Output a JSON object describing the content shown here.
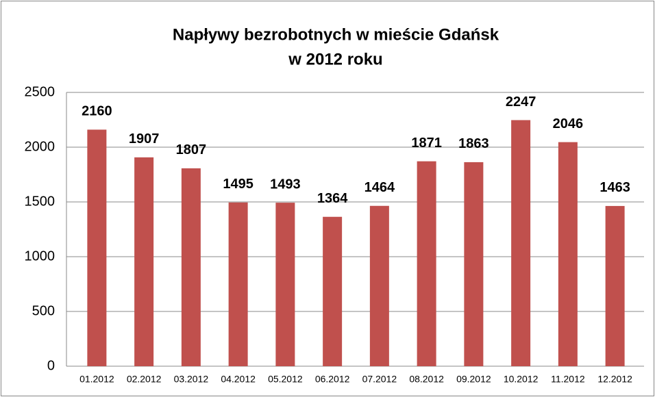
{
  "chart_data": {
    "type": "bar",
    "title": [
      "Napływy bezrobotnych w mieście Gdańsk",
      "w 2012 roku"
    ],
    "categories": [
      "01.2012",
      "02.2012",
      "03.2012",
      "04.2012",
      "05.2012",
      "06.2012",
      "07.2012",
      "08.2012",
      "09.2012",
      "10.2012",
      "11.2012",
      "12.2012"
    ],
    "values": [
      2160,
      1907,
      1807,
      1495,
      1493,
      1364,
      1464,
      1871,
      1863,
      2247,
      2046,
      1463
    ],
    "color": "#c0504d",
    "ylim": [
      0,
      2500
    ],
    "yticks": [
      0,
      500,
      1000,
      1500,
      2000,
      2500
    ],
    "grid": true
  }
}
